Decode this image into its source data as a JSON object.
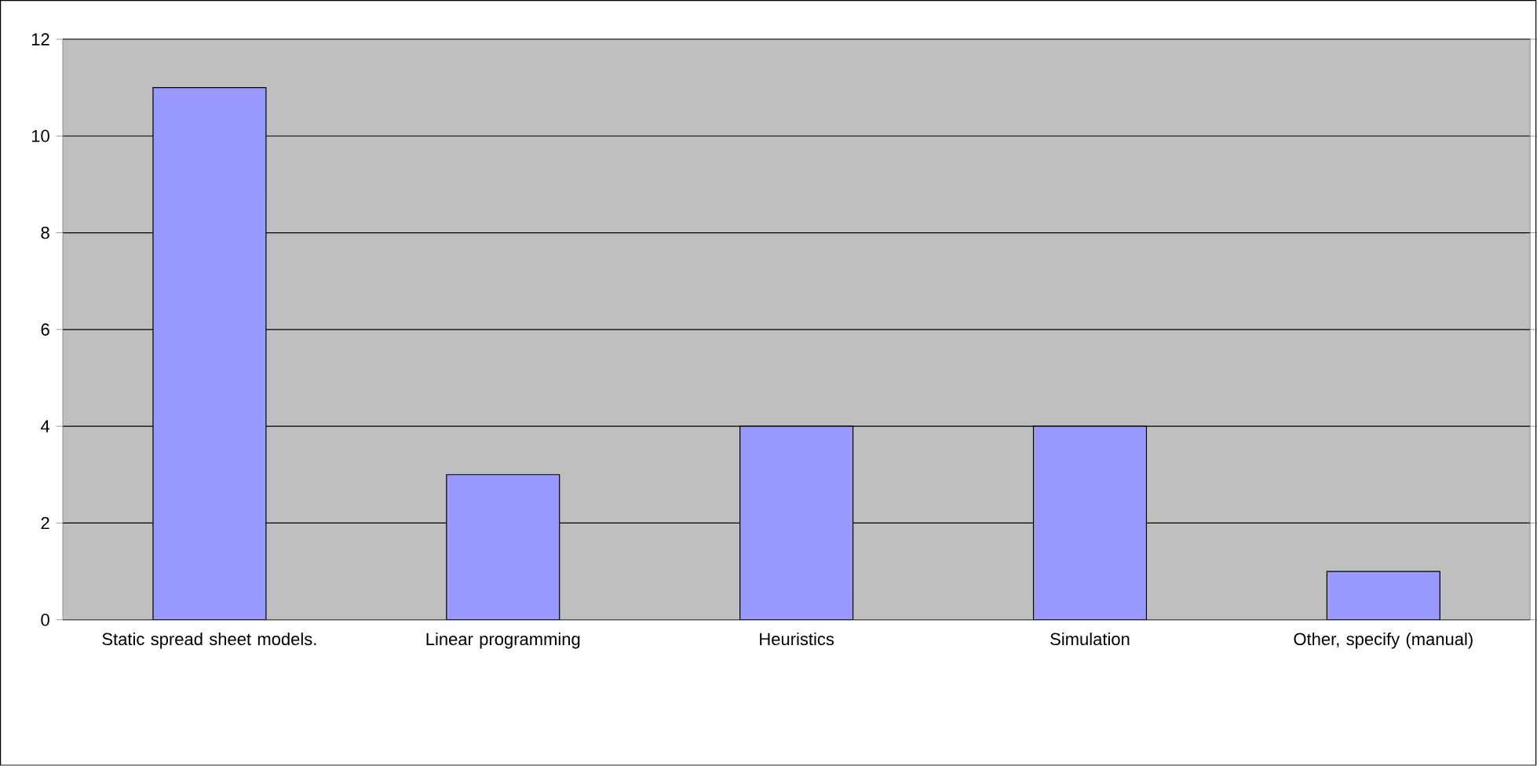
{
  "chart_data": {
    "type": "bar",
    "categories": [
      "Static spread sheet models.",
      "Linear programming",
      "Heuristics",
      "Simulation",
      "Other, specify (manual)"
    ],
    "values": [
      11,
      3,
      4,
      4,
      1
    ],
    "color": "#9999ff",
    "ylim": [
      0,
      12
    ],
    "yticks": [
      0,
      2,
      4,
      6,
      8,
      10,
      12
    ],
    "grid": "y"
  }
}
